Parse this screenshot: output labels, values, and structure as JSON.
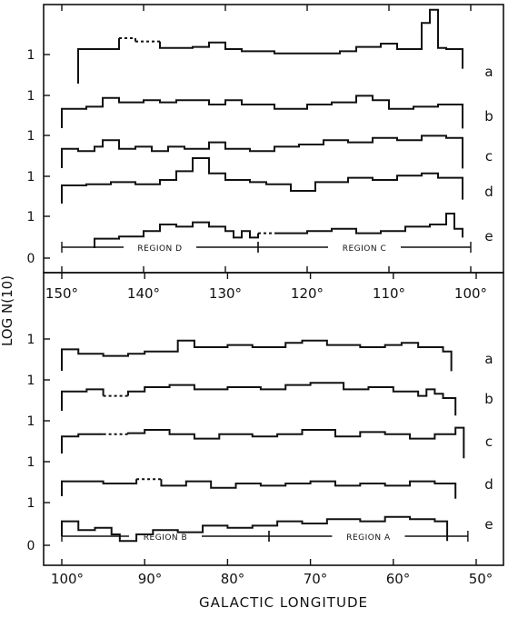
{
  "figure": {
    "ylabel": "LOG N(10)",
    "xlabel": "GALACTIC LONGITUDE",
    "top_xticks": [
      "150°",
      "140°",
      "130°",
      "120°",
      "110°",
      "100°"
    ],
    "bottom_xticks": [
      "100°",
      "90°",
      "80°",
      "70°",
      "60°",
      "50°"
    ]
  },
  "chart_data": [
    {
      "type": "line",
      "panel": "top",
      "x_axis": {
        "range": [
          150,
          100
        ],
        "ticks": [
          150,
          140,
          130,
          120,
          110,
          100
        ]
      },
      "y_axis": {
        "offset_step": 1,
        "ytick_labels": [
          "0",
          "1",
          "1",
          "1",
          "1",
          "1"
        ]
      },
      "regions": [
        {
          "name": "REGION D",
          "x_range": [
            150,
            126
          ]
        },
        {
          "name": "REGION C",
          "x_range": [
            126,
            100
          ]
        }
      ],
      "series": [
        {
          "name": "a",
          "x": [
            148,
            143,
            141,
            138,
            134,
            132,
            130,
            128,
            124,
            120,
            116,
            114,
            111,
            109,
            106,
            105,
            104,
            103,
            101
          ],
          "y": [
            1.0,
            1.5,
            1.35,
            1.05,
            1.1,
            1.3,
            1.0,
            0.9,
            0.8,
            0.8,
            0.9,
            1.1,
            1.25,
            1.0,
            2.2,
            2.8,
            1.05,
            1.0,
            0.1
          ],
          "dashed_x": [
            [
              143,
              138
            ]
          ]
        },
        {
          "name": "b",
          "x": [
            150,
            147,
            145,
            143,
            140,
            138,
            136,
            132,
            130,
            128,
            124,
            120,
            117,
            114,
            112,
            110,
            107,
            104,
            101
          ],
          "y": [
            0.3,
            0.4,
            0.8,
            0.6,
            0.7,
            0.6,
            0.7,
            0.5,
            0.7,
            0.5,
            0.3,
            0.5,
            0.6,
            0.9,
            0.7,
            0.3,
            0.4,
            0.5,
            -0.6
          ]
        },
        {
          "name": "c",
          "x": [
            150,
            148,
            146,
            145,
            143,
            141,
            139,
            137,
            135,
            132,
            130,
            127,
            124,
            121,
            118,
            115,
            112,
            109,
            106,
            103,
            101
          ],
          "y": [
            0.3,
            0.2,
            0.4,
            0.7,
            0.3,
            0.4,
            0.2,
            0.4,
            0.3,
            0.6,
            0.3,
            0.2,
            0.4,
            0.5,
            0.7,
            0.6,
            0.8,
            0.7,
            0.9,
            0.8,
            -0.6
          ]
        },
        {
          "name": "d",
          "x": [
            150,
            147,
            144,
            141,
            138,
            136,
            134,
            132,
            130,
            127,
            125,
            122,
            119,
            115,
            112,
            109,
            106,
            104,
            101
          ],
          "y": [
            0.25,
            0.3,
            0.4,
            0.3,
            0.5,
            0.9,
            1.5,
            0.8,
            0.5,
            0.4,
            0.3,
            0.0,
            0.4,
            0.6,
            0.5,
            0.7,
            0.8,
            0.6,
            -0.4
          ]
        },
        {
          "name": "e",
          "x": [
            146,
            143,
            140,
            138,
            136,
            134,
            132,
            130,
            129,
            128,
            127,
            126,
            124,
            120,
            117,
            114,
            111,
            108,
            105,
            103,
            102,
            101
          ],
          "y": [
            -0.15,
            -0.05,
            0.2,
            0.5,
            0.4,
            0.6,
            0.4,
            0.2,
            -0.1,
            0.2,
            -0.1,
            0.1,
            0.1,
            0.2,
            0.3,
            0.1,
            0.2,
            0.4,
            0.5,
            1.0,
            0.3,
            -0.1
          ],
          "dashed_x": [
            [
              126,
              121
            ]
          ]
        }
      ]
    },
    {
      "type": "line",
      "panel": "bottom",
      "x_axis": {
        "range": [
          100,
          50
        ],
        "ticks": [
          100,
          90,
          80,
          70,
          60,
          50
        ]
      },
      "y_axis": {
        "offset_step": 1,
        "ytick_labels": [
          "0",
          "1",
          "1",
          "1",
          "1",
          "1"
        ]
      },
      "regions": [
        {
          "name": "REGION B",
          "x_range": [
            100,
            75
          ]
        },
        {
          "name": "REGION A",
          "x_range": [
            75,
            51
          ]
        }
      ],
      "series": [
        {
          "name": "a",
          "x": [
            100,
            98,
            95,
            92,
            90,
            86,
            84,
            80,
            77,
            73,
            71,
            68,
            64,
            61,
            59,
            57,
            54,
            53
          ],
          "y": [
            0.4,
            0.2,
            0.1,
            0.2,
            0.3,
            0.8,
            0.5,
            0.6,
            0.5,
            0.7,
            0.8,
            0.6,
            0.5,
            0.6,
            0.7,
            0.5,
            0.3,
            -0.6
          ]
        },
        {
          "name": "b",
          "x": [
            100,
            97,
            95,
            92,
            90,
            87,
            84,
            80,
            76,
            73,
            70,
            66,
            63,
            60,
            57,
            56,
            55,
            54,
            52.5
          ],
          "y": [
            0.3,
            0.4,
            0.1,
            0.3,
            0.5,
            0.6,
            0.4,
            0.5,
            0.4,
            0.6,
            0.7,
            0.4,
            0.5,
            0.3,
            0.1,
            0.4,
            0.2,
            0.0,
            -0.8
          ],
          "dashed_x": [
            [
              95,
              92
            ]
          ]
        },
        {
          "name": "c",
          "x": [
            100,
            98,
            95,
            92,
            90,
            87,
            84,
            81,
            77,
            74,
            71,
            67,
            64,
            61,
            58,
            55,
            52.5,
            51.5
          ],
          "y": [
            0.2,
            0.3,
            0.3,
            0.35,
            0.5,
            0.3,
            0.1,
            0.3,
            0.2,
            0.3,
            0.5,
            0.2,
            0.4,
            0.3,
            0.1,
            0.3,
            0.6,
            -0.8
          ],
          "dashed_x": [
            [
              95,
              92
            ]
          ]
        },
        {
          "name": "d",
          "x": [
            100,
            95,
            91,
            88,
            85,
            82,
            79,
            76,
            73,
            70,
            67,
            64,
            61,
            58,
            55,
            52.5
          ],
          "y": [
            0.1,
            0.0,
            0.2,
            -0.1,
            0.1,
            -0.2,
            0.0,
            -0.1,
            0.0,
            0.1,
            -0.1,
            0.0,
            -0.1,
            0.1,
            0.0,
            -0.7
          ],
          "dashed_x": [
            [
              91,
              88
            ]
          ]
        },
        {
          "name": "e",
          "x": [
            100,
            98,
            96,
            94,
            93,
            91,
            89,
            86,
            83,
            80,
            77,
            74,
            71,
            68,
            64,
            61,
            58,
            55,
            53.5
          ],
          "y": [
            0.1,
            -0.3,
            -0.2,
            -0.5,
            -0.8,
            -0.5,
            -0.3,
            -0.4,
            -0.1,
            -0.2,
            -0.1,
            0.1,
            0.0,
            0.2,
            0.1,
            0.3,
            0.2,
            0.1,
            -0.8
          ]
        }
      ]
    }
  ]
}
